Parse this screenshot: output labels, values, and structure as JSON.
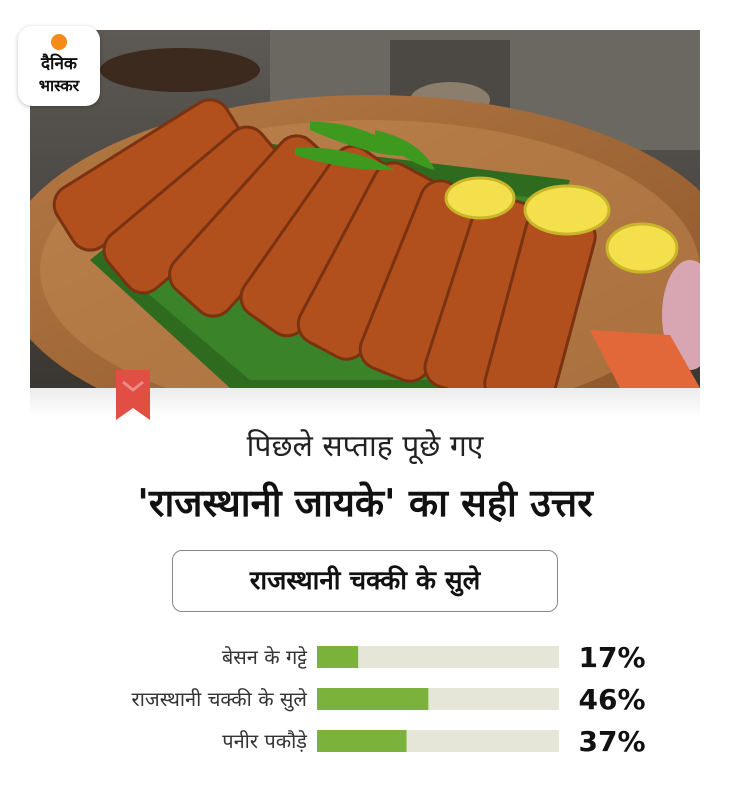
{
  "logo": {
    "line1": "दैनिक",
    "line2": "भास्कर"
  },
  "heading": {
    "line1": "पिछले सप्ताह पूछे गए",
    "line2": "'राजस्थानी जायके' का सही उत्तर"
  },
  "answer": "राजस्थानी चक्की के सुले",
  "colors": {
    "bar_fill": "#7bb23c",
    "bar_track": "#e5e5d8",
    "marker": "#e04e44",
    "logo_dot": "#f58a17"
  },
  "chart_data": {
    "type": "bar",
    "orientation": "horizontal",
    "categories": [
      "बेसन के गट्टे",
      "राजस्थानी चक्की के सुले",
      "पनीर पकौड़े"
    ],
    "values": [
      17,
      46,
      37
    ],
    "value_labels": [
      "17%",
      "46%",
      "37%"
    ],
    "xlim": [
      0,
      100
    ],
    "grid": false,
    "legend": "none"
  }
}
